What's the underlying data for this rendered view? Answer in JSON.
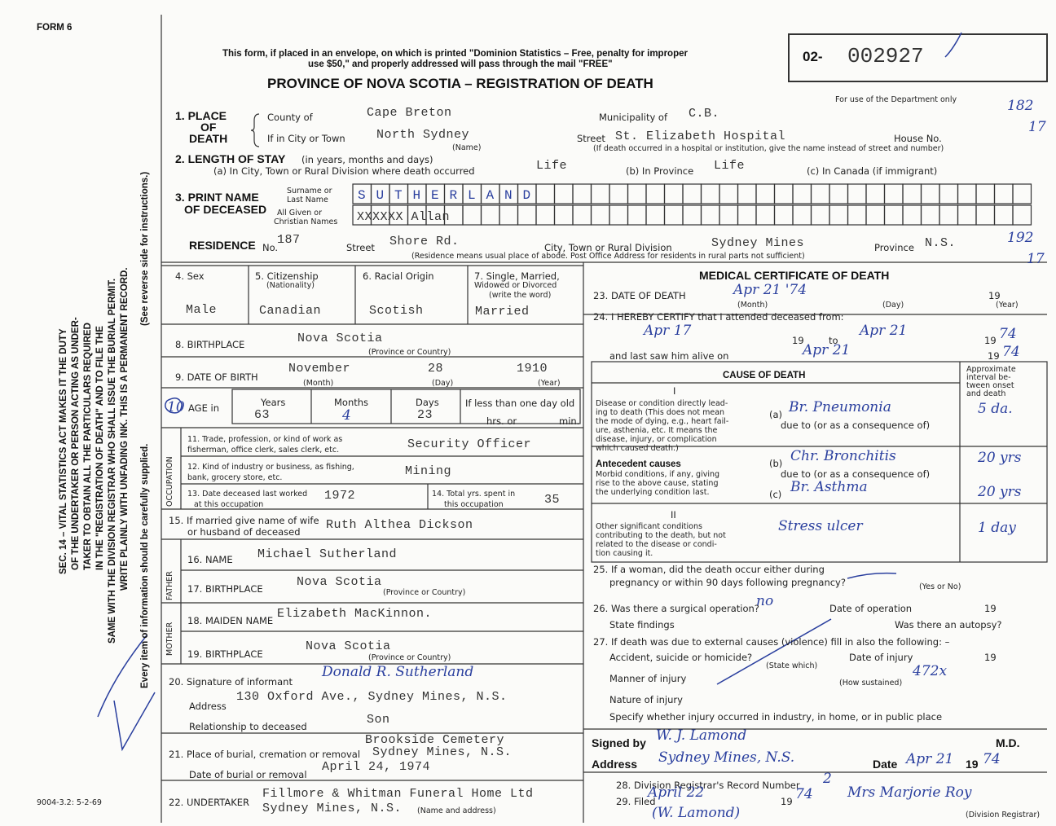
{
  "header": {
    "form": "FORM 6",
    "notice_1": "This form, if placed in an envelope, on which is printed \"Dominion Statistics – Free, penalty for improper",
    "notice_2": "use $50,\" and properly addressed will pass through the mail \"FREE\"",
    "title": "PROVINCE OF NOVA SCOTIA – REGISTRATION OF DEATH",
    "registration_prefix": "02-",
    "registration_number": "002927",
    "department_use": "For use of the Department only",
    "department_codes": [
      "182",
      "17",
      "192",
      "17"
    ]
  },
  "side_notes": {
    "act_lines": [
      "SEC. 14 – VITAL STATISTICS ACT MAKES IT THE DUTY",
      "OF THE UNDERTAKER OR PERSON ACTING AS UNDER-",
      "TAKER TO OBTAIN ALL THE PARTICULARS REQUIRED",
      "IN THE \"REGISTRATION OF DEATH\" AND TO FILE THE",
      "SAME WITH THE DIVISION REGISTRAR WHO SHALL ISSUE THE BURIAL PERMIT.",
      "WRITE PLAINLY WITH UNFADING INK. THIS IS A PERMANENT RECORD."
    ],
    "reverse": "(See reverse side for instructions.)",
    "careful": "Every item of information should be carefully supplied."
  },
  "print_code": "9004-3.2: 5-2-69",
  "place_of_death": {
    "label": [
      "1. PLACE",
      "OF",
      "DEATH"
    ],
    "county_label": "County of",
    "county": "Cape Breton",
    "municipality_label": "Municipality of",
    "municipality": "C.B.",
    "city_label": "If in City or Town",
    "city": "North Sydney",
    "city_caption": "(Name)",
    "street_label": "Street",
    "street": "St. Elizabeth Hospital",
    "house_label": "House No.",
    "note": "(If death occurred in a hospital or institution, give the name instead of street and number)"
  },
  "length_of_stay": {
    "label": "2. LENGTH OF STAY",
    "label_note": "(in years, months and days)",
    "city_label": "(a) In City, Town or Rural Division where death occurred",
    "city": "Life",
    "province_label": "(b) In Province",
    "province": "Life",
    "canada_label": "(c) In Canada (if immigrant)"
  },
  "name": {
    "label": [
      "3. PRINT NAME",
      "OF DECEASED"
    ],
    "surname_label": [
      "Surname or",
      "Last Name"
    ],
    "surname": "SUTHERLAND",
    "given_label": [
      "All Given or",
      "Christian Names"
    ],
    "given": "XXXXXX Allan"
  },
  "residence": {
    "label": "RESIDENCE",
    "no_label": "No.",
    "no": "187",
    "street_label": "Street",
    "street": "Shore Rd.",
    "city_label": "City, Town or Rural Division",
    "city": "Sydney Mines",
    "province_label": "Province",
    "province": "N.S.",
    "note": "(Residence means usual place of abode. Post Office Address for residents in rural parts not sufficient)"
  },
  "personal": {
    "sex_label": "4. Sex",
    "sex": "Male",
    "citizenship_label": [
      "5. Citizenship",
      "(Nationality)"
    ],
    "citizenship": "Canadian",
    "racial_label": "6. Racial Origin",
    "racial": "Scotish",
    "marital_label": [
      "7. Single, Married,",
      "Widowed or Divorced",
      "(write the word)"
    ],
    "marital": "Married"
  },
  "birthplace": {
    "label": "8. BIRTHPLACE",
    "value": "Nova Scotia",
    "caption": "(Province or Country)"
  },
  "date_of_birth": {
    "label": "9. DATE OF BIRTH",
    "month": "November",
    "day": "28",
    "year": "1910",
    "month_caption": "(Month)",
    "day_caption": "(Day)",
    "year_caption": "(Year)"
  },
  "age": {
    "number": "10",
    "label": "AGE in",
    "years_label": "Years",
    "years": "63",
    "months_label": "Months",
    "months": "4",
    "days_label": "Days",
    "days": "23",
    "infant_label": "If less than one day old",
    "hrs_label": "hrs. or",
    "min_label": "min."
  },
  "occupation": {
    "label": "OCCUPATION",
    "trade_label": [
      "11. Trade, profession, or kind of work as",
      "fisherman, office clerk, sales clerk, etc."
    ],
    "trade": "Security Officer",
    "industry_label": [
      "12. Kind of industry or business, as fishing,",
      "bank, grocery store, etc."
    ],
    "industry": "Mining",
    "last_worked_label": [
      "13. Date deceased last worked",
      "at this occupation"
    ],
    "last_worked": "1972",
    "years_label": [
      "14. Total yrs. spent in",
      "this occupation"
    ],
    "years": "35"
  },
  "spouse": {
    "label": [
      "15. If married give name of wife",
      "or husband of deceased"
    ],
    "value": "Ruth Althea Dickson"
  },
  "father": {
    "label": "FATHER",
    "name_label": "16. NAME",
    "name": "Michael Sutherland",
    "birthplace_label": "17. BIRTHPLACE",
    "birthplace": "Nova Scotia",
    "caption": "(Province or Country)"
  },
  "mother": {
    "label": "MOTHER",
    "maiden_label": "18. MAIDEN NAME",
    "maiden": "Elizabeth MacKinnon.",
    "birthplace_label": "19. BIRTHPLACE",
    "birthplace": "Nova Scotia",
    "caption": "(Province or Country)"
  },
  "informant": {
    "signature_label": "20. Signature of informant",
    "signature": "Donald R. Sutherland",
    "address_label": "Address",
    "address": "130 Oxford Ave., Sydney Mines, N.S.",
    "relationship_label": "Relationship to deceased",
    "relationship": "Son"
  },
  "burial": {
    "place_label": "21. Place of burial, cremation or removal",
    "place": [
      "Brookside Cemetery",
      "Sydney Mines, N.S."
    ],
    "date_label": "Date of burial or removal",
    "date": "April 24, 1974"
  },
  "undertaker": {
    "label": "22. UNDERTAKER",
    "value": [
      "Fillmore & Whitman Funeral Home Ltd",
      "Sydney Mines, N.S."
    ],
    "caption": "(Name and address)"
  },
  "medical": {
    "title": "MEDICAL CERTIFICATE OF DEATH",
    "death_label": "23. DATE OF DEATH",
    "death_date": "Apr 21 '74",
    "century": "19",
    "month_caption": "(Month)",
    "day_caption": "(Day)",
    "year_caption": "(Year)",
    "certify_label": "24. I HEREBY CERTIFY that I attended deceased from:",
    "from": "Apr 17",
    "to_label": "to",
    "to": "Apr 21",
    "to_year": "74",
    "last_seen_label": "and last saw him alive on",
    "last_seen": "Apr 21",
    "last_seen_year": "74"
  },
  "cause": {
    "title": "CAUSE OF DEATH",
    "interval_label": [
      "Approximate",
      "interval be-",
      "tween onset",
      "and death"
    ],
    "part_1": "I",
    "direct_label": [
      "Disease or condition directly lead-",
      "ing to death (This does not mean",
      "the mode of dying, e.g., heart fail-",
      "ure, asthenia, etc. It means the",
      "disease, injury, or complication",
      "which caused death.)"
    ],
    "a_label": "(a)",
    "a": "Br. Pneumonia",
    "a_interval": "5 da.",
    "due_to": "due to (or as a consequence of)",
    "antecedent_title": "Antecedent causes",
    "antecedent_label": [
      "Morbid conditions, if any, giving",
      "rise to the above cause, stating",
      "the underlying condition last."
    ],
    "b_label": "(b)",
    "b": "Chr. Bronchitis",
    "b_interval": "20 yrs",
    "c_label": "(c)",
    "c": "Br. Asthma",
    "c_interval": "20 yrs",
    "part_2": "II",
    "other_label": [
      "Other significant conditions",
      "contributing to the death, but not",
      "related to the disease or condi-",
      "tion causing it."
    ],
    "other": "Stress ulcer",
    "other_interval": "1 day"
  },
  "woman": {
    "label": [
      "25. If a woman, did the death occur either during",
      "pregnancy or within 90 days following pregnancy?"
    ],
    "caption": "(Yes or No)"
  },
  "operation": {
    "label": "26. Was there a surgical operation?",
    "value": "no",
    "date_label": "Date of operation",
    "findings_label": "State findings",
    "autopsy_label": "Was there an autopsy?"
  },
  "external": {
    "label": "27. If death was due to external causes (violence) fill in also the following: –",
    "accident_label": "Accident, suicide or homicide?",
    "state_caption": "(State which)",
    "injury_date_label": "Date of injury",
    "manner_label": "Manner of injury",
    "annotation": "472x",
    "manner_caption": "(How sustained)",
    "nature_label": "Nature of injury",
    "place_label": "Specify whether injury occurred in industry, in home, or in public place"
  },
  "signature": {
    "signed_label": "Signed by",
    "signed": "W. J. Lamond",
    "md": "M.D.",
    "address_label": "Address",
    "address": "Sydney Mines, N.S.",
    "date_label": "Date",
    "date": "Apr 21",
    "year": "74"
  },
  "registrar": {
    "record_label": "28. Division Registrar's Record Number",
    "record": "2",
    "filed_label": "29. Filed",
    "filed": "April 22",
    "filed_year": "74",
    "registrar": "Mrs Marjorie Roy",
    "registrar_note": "(W. Lamond)",
    "registrar_caption": "(Division Registrar)"
  }
}
